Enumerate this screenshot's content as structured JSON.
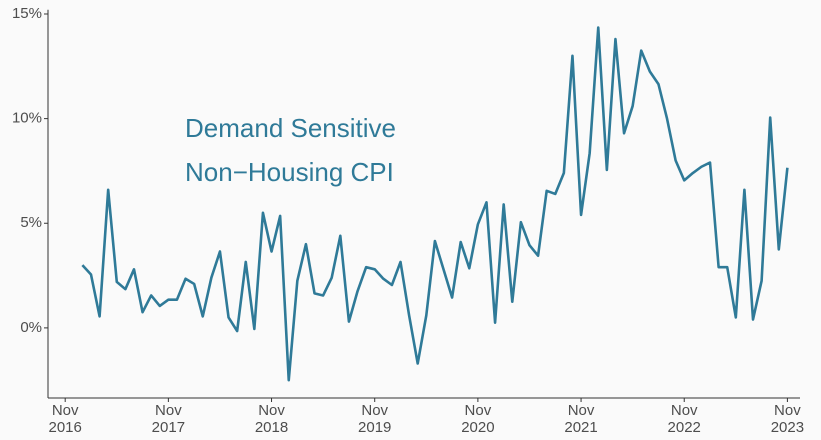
{
  "chart_data": {
    "type": "line",
    "annotation": [
      "Demand Sensitive",
      "Non−Housing CPI"
    ],
    "x": [
      "2017-01",
      "2017-02",
      "2017-03",
      "2017-04",
      "2017-05",
      "2017-06",
      "2017-07",
      "2017-08",
      "2017-09",
      "2017-10",
      "2017-11",
      "2017-12",
      "2018-01",
      "2018-02",
      "2018-03",
      "2018-04",
      "2018-05",
      "2018-06",
      "2018-07",
      "2018-08",
      "2018-09",
      "2018-10",
      "2018-11",
      "2018-12",
      "2019-01",
      "2019-02",
      "2019-03",
      "2019-04",
      "2019-05",
      "2019-06",
      "2019-07",
      "2019-08",
      "2019-09",
      "2019-10",
      "2019-11",
      "2019-12",
      "2020-01",
      "2020-02",
      "2020-03",
      "2020-04",
      "2020-05",
      "2020-06",
      "2020-07",
      "2020-08",
      "2020-09",
      "2020-10",
      "2020-11",
      "2020-12",
      "2021-01",
      "2021-02",
      "2021-03",
      "2021-04",
      "2021-05",
      "2021-06",
      "2021-07",
      "2021-08",
      "2021-09",
      "2021-10",
      "2021-11",
      "2021-12",
      "2022-01",
      "2022-02",
      "2022-03",
      "2022-04",
      "2022-05",
      "2022-06",
      "2022-07",
      "2022-08",
      "2022-09",
      "2022-10",
      "2022-11",
      "2022-12",
      "2023-01",
      "2023-02",
      "2023-03",
      "2023-04",
      "2023-05",
      "2023-06",
      "2023-07",
      "2023-08",
      "2023-09",
      "2023-10",
      "2023-11"
    ],
    "series": [
      {
        "name": "Demand Sensitive Non−Housing CPI",
        "color": "#2f7a98",
        "values": [
          3.0,
          2.55,
          0.55,
          6.6,
          2.2,
          1.85,
          2.8,
          0.75,
          1.55,
          1.05,
          1.35,
          1.35,
          2.35,
          2.1,
          0.55,
          2.4,
          3.65,
          0.5,
          -0.15,
          3.15,
          -0.05,
          5.5,
          3.65,
          5.35,
          -2.5,
          2.25,
          4.0,
          1.65,
          1.55,
          2.4,
          4.4,
          0.3,
          1.75,
          2.9,
          2.8,
          2.35,
          2.05,
          3.15,
          0.6,
          -1.7,
          0.6,
          4.15,
          2.8,
          1.45,
          4.1,
          2.85,
          4.95,
          6.0,
          0.25,
          5.9,
          1.25,
          5.05,
          3.95,
          3.45,
          6.55,
          6.4,
          7.4,
          13.0,
          5.4,
          8.35,
          14.35,
          7.55,
          13.8,
          9.3,
          10.6,
          13.25,
          12.25,
          11.65,
          10.0,
          8.0,
          7.05,
          7.4,
          7.7,
          7.9,
          2.9,
          2.9,
          0.5,
          6.6,
          0.4,
          2.25,
          10.05,
          3.75,
          7.65
        ]
      }
    ],
    "xlim": [
      "2016-09",
      "2023-12"
    ],
    "xticks": [
      {
        "value": "2016-11",
        "label": "Nov 2016"
      },
      {
        "value": "2017-11",
        "label": "Nov 2017"
      },
      {
        "value": "2018-11",
        "label": "Nov 2018"
      },
      {
        "value": "2019-11",
        "label": "Nov 2019"
      },
      {
        "value": "2020-11",
        "label": "Nov 2020"
      },
      {
        "value": "2021-11",
        "label": "Nov 2021"
      },
      {
        "value": "2022-11",
        "label": "Nov 2022"
      },
      {
        "value": "2023-11",
        "label": "Nov 2023"
      }
    ],
    "ylim": [
      -3.35,
      15.2
    ],
    "yticks": [
      {
        "value": 0,
        "label": "0%"
      },
      {
        "value": 5,
        "label": "5%"
      },
      {
        "value": 10,
        "label": "10%"
      },
      {
        "value": 15,
        "label": "15%"
      }
    ],
    "grid": false
  }
}
